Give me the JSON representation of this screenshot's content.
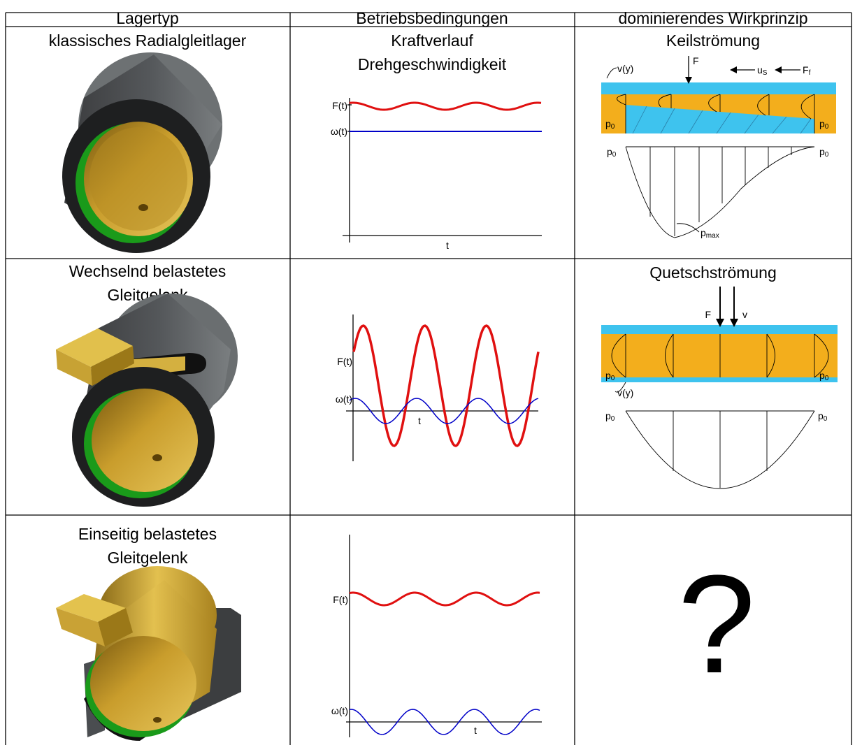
{
  "table": {
    "header": [
      "Lagertyp",
      "Betriebsbedingungen",
      "dominierendes Wirkprinzip"
    ],
    "rows": [
      {
        "bearing": [
          "klassisches Radialgleitlager"
        ],
        "conditions": [
          "Kraftverlauf",
          "Drehgeschwindigkeit"
        ],
        "plot": {
          "force": "F(t)",
          "speed": "ω(t)",
          "time": "t"
        },
        "principle": "Keilströmung",
        "diagram": {
          "profile": "v(y)",
          "force": "F",
          "speed": {
            "base": "u",
            "sub": "S"
          },
          "friction": {
            "base": "F",
            "sub": "f"
          },
          "p0": [
            {
              "base": "p",
              "sub": "0"
            },
            {
              "base": "p",
              "sub": "0"
            },
            {
              "base": "p",
              "sub": "0"
            },
            {
              "base": "p",
              "sub": "0"
            }
          ],
          "pmax": {
            "base": "p",
            "sub": "max"
          }
        }
      },
      {
        "bearing": [
          "Wechselnd belastetes",
          "Gleitgelenk"
        ],
        "plot": {
          "force": "F(t)",
          "speed": "ω(t)",
          "time": "t"
        },
        "principle": "Quetschströmung",
        "diagram": {
          "force": "F",
          "velocity": "v",
          "profile": "v(y)",
          "p0": [
            {
              "base": "p",
              "sub": "0"
            },
            {
              "base": "p",
              "sub": "0"
            },
            {
              "base": "p",
              "sub": "0"
            },
            {
              "base": "p",
              "sub": "0"
            }
          ]
        }
      },
      {
        "bearing": [
          "Einseitig belastetes",
          "Gleitgelenk"
        ],
        "plot": {
          "force": "F(t)",
          "speed": "ω(t)",
          "time": "t"
        },
        "principle": "?"
      }
    ]
  }
}
